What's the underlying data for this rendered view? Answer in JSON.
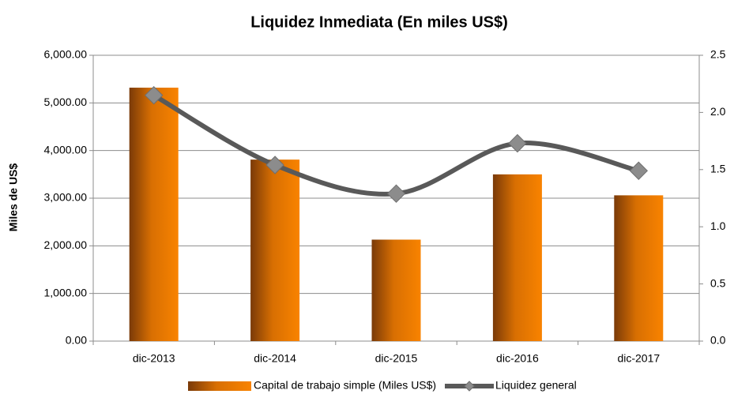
{
  "chart_data": {
    "type": "bar",
    "title": "Liquidez Inmediata (En miles US$)",
    "y_label": "Miles de US$",
    "categories": [
      "dic-2013",
      "dic-2014",
      "dic-2015",
      "dic-2016",
      "dic-2017"
    ],
    "series": [
      {
        "name": "Capital de trabajo simple (Miles US$)",
        "type": "bar",
        "color": "#f47f00",
        "values": [
          5320,
          3810,
          2130,
          3500,
          3060
        ]
      },
      {
        "name": "Liquidez general",
        "type": "line",
        "axis": "y2",
        "color": "#595959",
        "marker_color": "#8c8c8c",
        "values": [
          2.15,
          1.54,
          1.29,
          1.73,
          1.49
        ]
      }
    ],
    "ylim": [
      0,
      6000
    ],
    "yticks": [
      {
        "value": 0,
        "label": "0.00"
      },
      {
        "value": 1000,
        "label": "1,000.00"
      },
      {
        "value": 2000,
        "label": "2,000.00"
      },
      {
        "value": 3000,
        "label": "3,000.00"
      },
      {
        "value": 4000,
        "label": "4,000.00"
      },
      {
        "value": 5000,
        "label": "5,000.00"
      },
      {
        "value": 6000,
        "label": "6,000.00"
      }
    ],
    "y2lim": [
      0,
      2.5
    ],
    "y2ticks": [
      {
        "value": 0,
        "label": "0.0"
      },
      0.5,
      {
        "value": 1,
        "label": "1.0"
      },
      {
        "value": 1.5,
        "label": "1.5"
      },
      {
        "value": 2,
        "label": "2.0"
      },
      2.5
    ],
    "grid": true,
    "legend": "bottom"
  }
}
